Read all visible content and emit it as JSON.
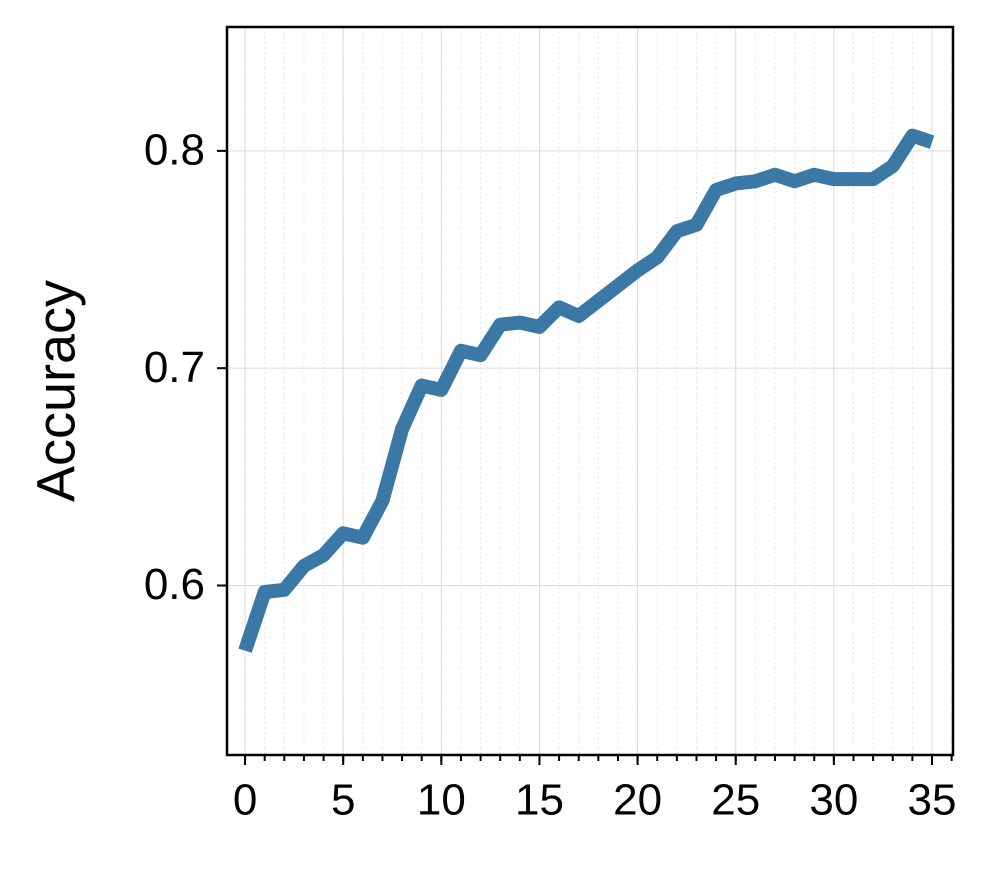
{
  "chart_data": {
    "type": "line",
    "ylabel": "Accuracy",
    "x": [
      0,
      1,
      2,
      3,
      4,
      5,
      6,
      7,
      8,
      9,
      10,
      11,
      12,
      13,
      14,
      15,
      16,
      17,
      18,
      19,
      20,
      21,
      22,
      23,
      24,
      25,
      26,
      27,
      28,
      29,
      30,
      31,
      32,
      33,
      34,
      35
    ],
    "series": [
      {
        "color": "#3a78a6",
        "values": [
          0.57,
          0.597,
          0.598,
          0.609,
          0.614,
          0.624,
          0.622,
          0.639,
          0.672,
          0.692,
          0.69,
          0.708,
          0.706,
          0.72,
          0.721,
          0.719,
          0.728,
          0.724,
          0.731,
          0.738,
          0.745,
          0.751,
          0.763,
          0.766,
          0.782,
          0.785,
          0.786,
          0.789,
          0.786,
          0.789,
          0.787,
          0.787,
          0.787,
          0.793,
          0.807,
          0.804
        ]
      }
    ],
    "xlim": [
      -0.92,
      36.07
    ],
    "xticks": [
      0,
      5,
      10,
      15,
      20,
      25,
      30,
      35
    ],
    "xminorticks": [
      0,
      1,
      2,
      3,
      4,
      5,
      6,
      7,
      8,
      9,
      10,
      11,
      12,
      13,
      14,
      15,
      16,
      17,
      18,
      19,
      20,
      21,
      22,
      23,
      24,
      25,
      26,
      27,
      28,
      29,
      30,
      31,
      32,
      33,
      34,
      35,
      36
    ],
    "ylim": [
      0.522,
      0.857
    ],
    "yticks": [
      0.6,
      0.7,
      0.8
    ],
    "grid": true
  }
}
